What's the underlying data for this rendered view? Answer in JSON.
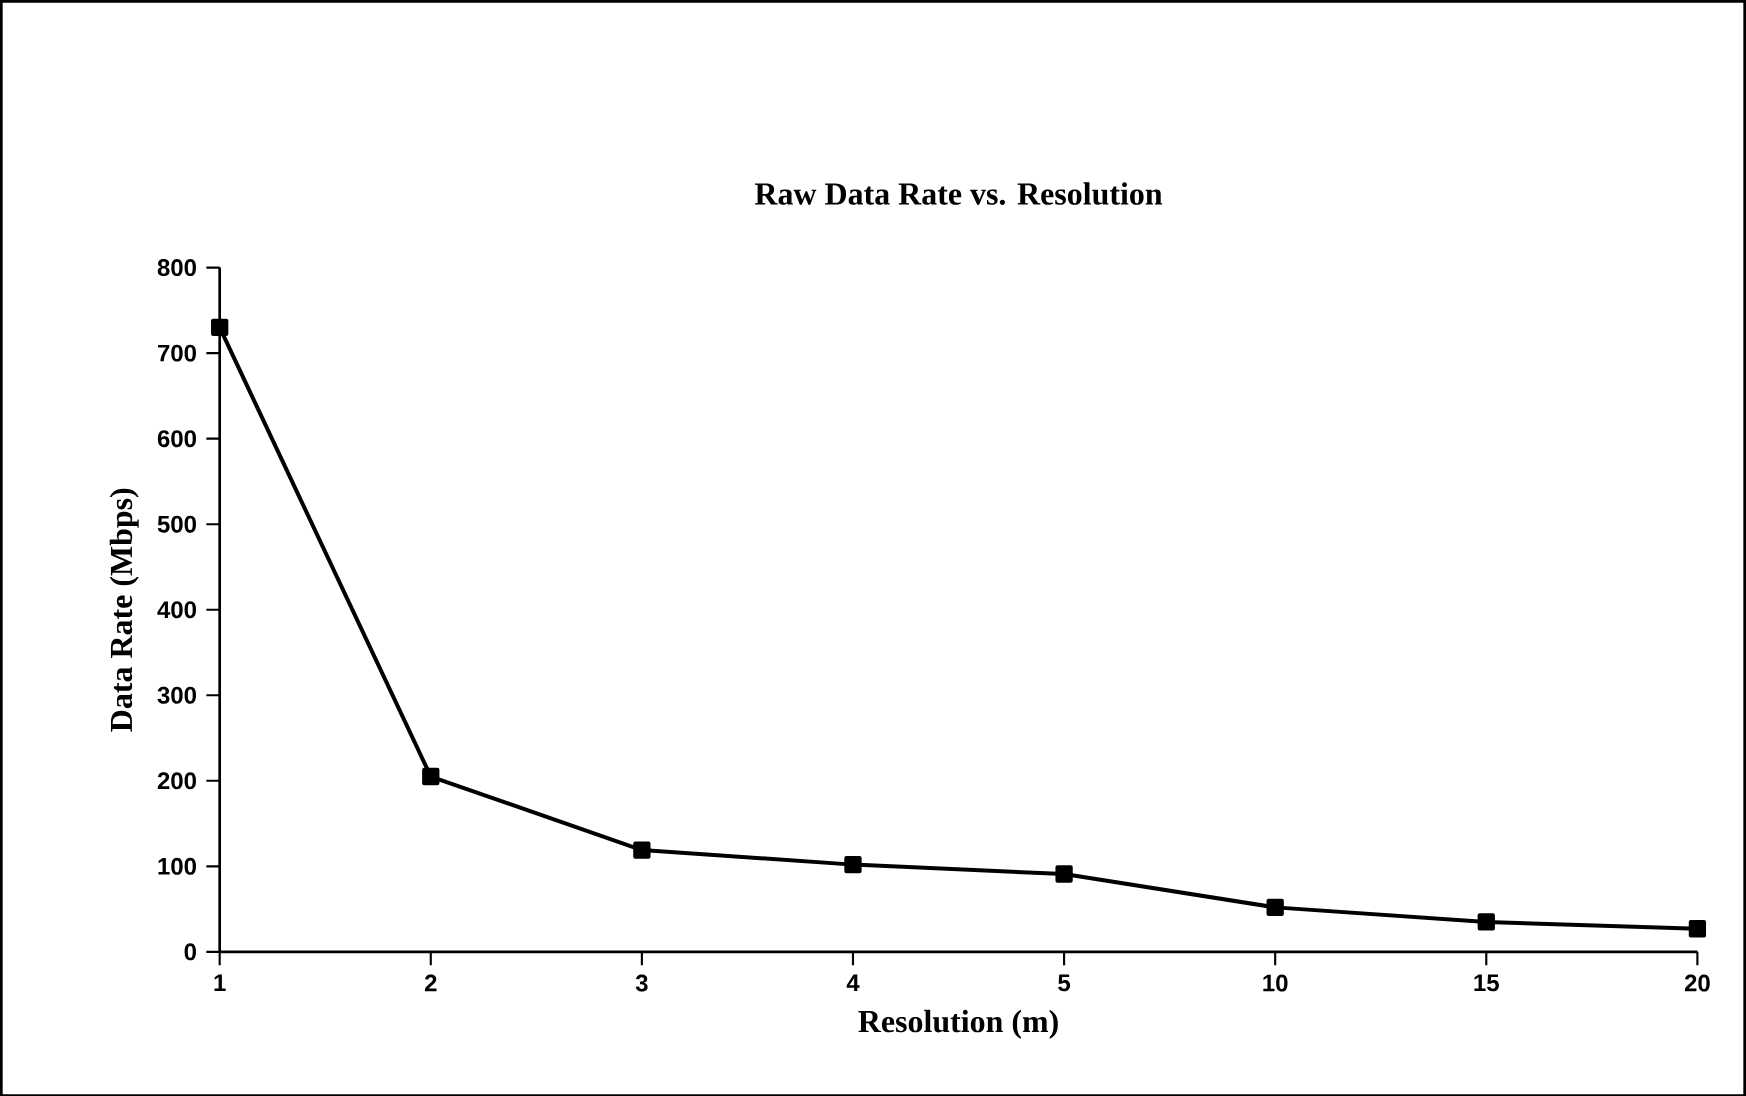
{
  "chart_data": {
    "type": "line",
    "title": "Raw Data Rate vs. Resolution",
    "xlabel": "Resolution (m)",
    "ylabel": "Data Rate (Mbps)",
    "categories": [
      "1",
      "2",
      "3",
      "4",
      "5",
      "10",
      "15",
      "20"
    ],
    "series": [
      {
        "color": "#000000",
        "values": [
          730,
          205,
          119,
          102,
          91,
          52,
          35,
          27
        ]
      }
    ],
    "ylim": [
      0,
      800
    ],
    "yticks": [
      0,
      100,
      200,
      300,
      400,
      500,
      600,
      700,
      800
    ],
    "marker": "square",
    "line_style": "solid",
    "grid": false
  }
}
